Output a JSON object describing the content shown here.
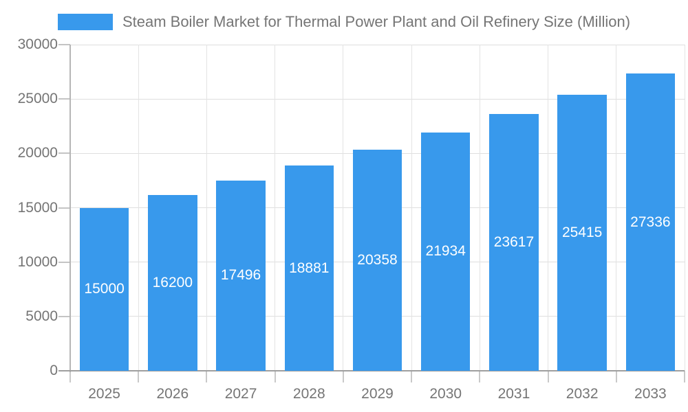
{
  "chart_data": {
    "type": "bar",
    "title": "Steam Boiler Market for Thermal Power Plant and Oil Refinery Size (Million)",
    "categories": [
      "2025",
      "2026",
      "2027",
      "2028",
      "2029",
      "2030",
      "2031",
      "2032",
      "2033"
    ],
    "values": [
      15000,
      16200,
      17496,
      18881,
      20358,
      21934,
      23617,
      25415,
      27336
    ],
    "xlabel": "",
    "ylabel": "",
    "ylim": [
      0,
      30000
    ],
    "ytick_step": 5000,
    "ytick_labels": [
      "0",
      "5000",
      "10000",
      "15000",
      "20000",
      "25000",
      "30000"
    ],
    "grid": true,
    "legend_position": "top",
    "colors": {
      "bar": "#3899EC",
      "bar_value_text": "#ffffff",
      "axis_text": "#757575",
      "title_text": "#757575",
      "gridline": "#dedede",
      "axis_line": "#9e9e9e"
    }
  }
}
